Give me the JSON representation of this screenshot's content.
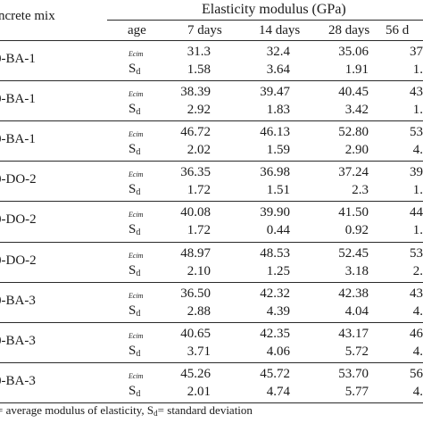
{
  "header": {
    "mix_label": "ncrete mix",
    "group_label": "Elasticity modulus (GPa)",
    "age_label": "age",
    "columns": [
      "7 days",
      "14 days",
      "28 days",
      "56 d"
    ]
  },
  "row_labels": {
    "ecim": "Ecim",
    "sd_main": "S",
    "sd_sub": "d"
  },
  "rows": [
    {
      "mix": "0-BA-1",
      "ecim": [
        "31.3",
        "32.4",
        "35.06",
        "37"
      ],
      "sd": [
        "1.58",
        "3.64",
        "1.91",
        "1."
      ]
    },
    {
      "mix": "0-BA-1",
      "ecim": [
        "38.39",
        "39.47",
        "40.45",
        "43"
      ],
      "sd": [
        "2.92",
        "1.83",
        "3.42",
        "1."
      ]
    },
    {
      "mix": "0-BA-1",
      "ecim": [
        "46.72",
        "46.13",
        "52.80",
        "53"
      ],
      "sd": [
        "2.02",
        "1.59",
        "2.90",
        "4."
      ]
    },
    {
      "mix": "0-DO-2",
      "ecim": [
        "36.35",
        "36.98",
        "37.24",
        "39"
      ],
      "sd": [
        "1.72",
        "1.51",
        "2.3",
        "1."
      ]
    },
    {
      "mix": "0-DO-2",
      "ecim": [
        "40.08",
        "39.90",
        "41.50",
        "44"
      ],
      "sd": [
        "1.72",
        "0.44",
        "0.92",
        "1."
      ]
    },
    {
      "mix": "0-DO-2",
      "ecim": [
        "48.97",
        "48.53",
        "52.45",
        "53"
      ],
      "sd": [
        "2.10",
        "1.25",
        "3.18",
        "2."
      ]
    },
    {
      "mix": "0-BA-3",
      "ecim": [
        "36.50",
        "42.32",
        "42.38",
        "43"
      ],
      "sd": [
        "2.88",
        "4.39",
        "4.04",
        "4."
      ]
    },
    {
      "mix": "0-BA-3",
      "ecim": [
        "40.65",
        "42.35",
        "43.17",
        "46"
      ],
      "sd": [
        "3.71",
        "4.06",
        "5.72",
        "4."
      ]
    },
    {
      "mix": "0-BA-3",
      "ecim": [
        "45.26",
        "45.72",
        "53.70",
        "56"
      ],
      "sd": [
        "2.01",
        "4.74",
        "5.77",
        "4."
      ]
    }
  ],
  "footnote": {
    "part1": "= average modulus of elasticity, S",
    "sub": "d",
    "part2": "= standard deviation"
  }
}
